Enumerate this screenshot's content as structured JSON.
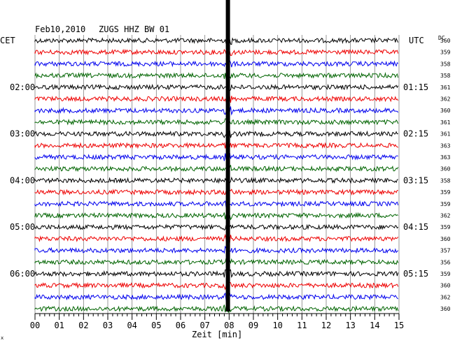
{
  "header": {
    "date": "Feb10,2010",
    "station": "ZUGS HHZ BW 01"
  },
  "labels": {
    "left_tz": "CET",
    "right_tz": "UTC",
    "dc_header": "DC",
    "x_axis_title": "Zeit [min]",
    "corner_mark": "x"
  },
  "colors": {
    "trace_cycle": [
      "#000000",
      "#ee0000",
      "#0000ee",
      "#006400"
    ],
    "grid": "#808080",
    "event_line": "#000000"
  },
  "chart_data": {
    "type": "line",
    "title": "Feb10,2010  ZUGS HHZ BW 01",
    "xlabel": "Zeit [min]",
    "xlim": [
      0,
      15
    ],
    "x_ticks": [
      "00",
      "01",
      "02",
      "03",
      "04",
      "05",
      "06",
      "07",
      "08",
      "09",
      "10",
      "11",
      "12",
      "13",
      "14",
      "15"
    ],
    "trace_minutes": 15,
    "trace_count": 24,
    "left_time_labels": [
      {
        "trace_index": 4,
        "text": "02:00"
      },
      {
        "trace_index": 8,
        "text": "03:00"
      },
      {
        "trace_index": 12,
        "text": "04:00"
      },
      {
        "trace_index": 16,
        "text": "05:00"
      },
      {
        "trace_index": 20,
        "text": "06:00"
      }
    ],
    "right_time_labels": [
      {
        "trace_index": 4,
        "text": "01:15"
      },
      {
        "trace_index": 8,
        "text": "02:15"
      },
      {
        "trace_index": 12,
        "text": "03:15"
      },
      {
        "trace_index": 16,
        "text": "04:15"
      },
      {
        "trace_index": 20,
        "text": "05:15"
      }
    ],
    "dc_offsets": [
      "360",
      "359",
      "358",
      "358",
      "361",
      "362",
      "360",
      "361",
      "361",
      "363",
      "363",
      "360",
      "358",
      "359",
      "359",
      "362",
      "359",
      "360",
      "357",
      "356",
      "359",
      "360",
      "362",
      "360"
    ],
    "event": {
      "minute": 7.95,
      "label": "strong spike across all traces"
    },
    "grid": true
  }
}
